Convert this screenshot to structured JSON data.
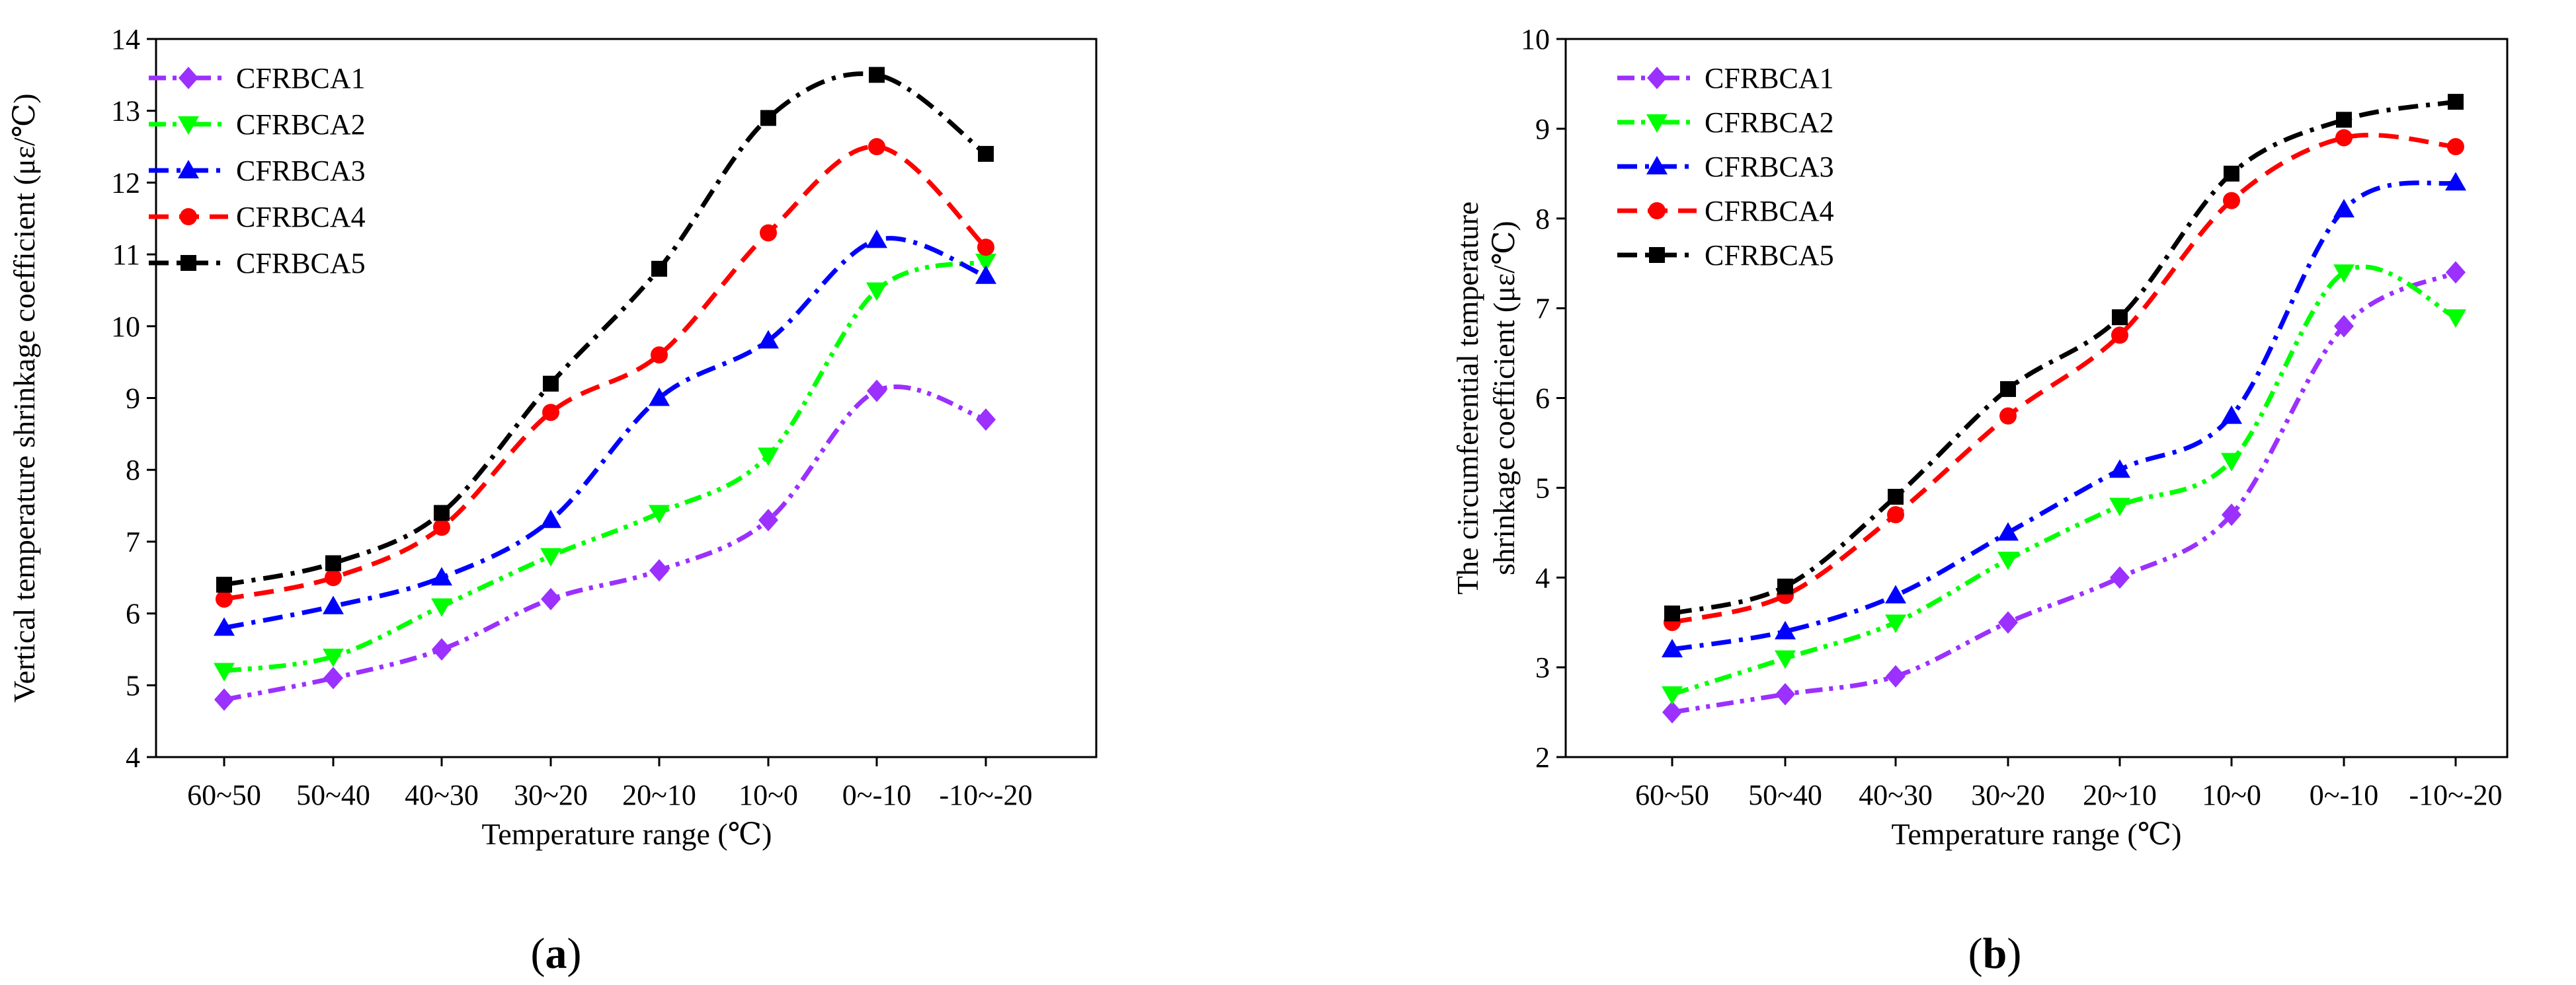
{
  "chart_data": [
    {
      "type": "line",
      "panel_label": "(a)",
      "panel_letter": "a",
      "title": "",
      "xlabel": "Temperature range (℃)",
      "ylabel": "Vertical temperature shrinkage coefficient (με/℃)",
      "categories": [
        "60~50",
        "50~40",
        "40~30",
        "30~20",
        "20~10",
        "10~0",
        "0~-10",
        "-10~-20"
      ],
      "ylim": [
        4,
        14
      ],
      "yticks": [
        4,
        5,
        6,
        7,
        8,
        9,
        10,
        11,
        12,
        13,
        14
      ],
      "legend_position": "top-left",
      "series": [
        {
          "name": "CFRBCA1",
          "color": "#9B30FF",
          "marker": "diamond",
          "dash": "dashdotdot",
          "values": [
            4.8,
            5.1,
            5.5,
            6.2,
            6.6,
            7.3,
            9.1,
            8.7
          ]
        },
        {
          "name": "CFRBCA2",
          "color": "#00FF00",
          "marker": "triangle-down",
          "dash": "dashdotdot",
          "values": [
            5.2,
            5.4,
            6.1,
            6.8,
            7.4,
            8.2,
            10.5,
            10.9
          ]
        },
        {
          "name": "CFRBCA3",
          "color": "#0000FF",
          "marker": "triangle-up",
          "dash": "dashdot",
          "values": [
            5.8,
            6.1,
            6.5,
            7.3,
            9.0,
            9.8,
            11.2,
            10.7
          ]
        },
        {
          "name": "CFRBCA4",
          "color": "#FF0000",
          "marker": "circle",
          "dash": "dash",
          "values": [
            6.2,
            6.5,
            7.2,
            8.8,
            9.6,
            11.3,
            12.5,
            11.1
          ]
        },
        {
          "name": "CFRBCA5",
          "color": "#000000",
          "marker": "square",
          "dash": "dashdot",
          "values": [
            6.4,
            6.7,
            7.4,
            9.2,
            10.8,
            12.9,
            13.5,
            12.4
          ]
        }
      ]
    },
    {
      "type": "line",
      "panel_label": "(b)",
      "panel_letter": "b",
      "title": "",
      "xlabel": "Temperature range (℃)",
      "ylabel_lines": [
        "The circumferential temperature",
        "shrinkage coefficient (με/℃)"
      ],
      "categories": [
        "60~50",
        "50~40",
        "40~30",
        "30~20",
        "20~10",
        "10~0",
        "0~-10",
        "-10~-20"
      ],
      "ylim": [
        2,
        10
      ],
      "yticks": [
        2,
        3,
        4,
        5,
        6,
        7,
        8,
        9,
        10
      ],
      "legend_position": "top-left",
      "series": [
        {
          "name": "CFRBCA1",
          "color": "#9B30FF",
          "marker": "diamond",
          "dash": "dashdotdot",
          "values": [
            2.5,
            2.7,
            2.9,
            3.5,
            4.0,
            4.7,
            6.8,
            7.4
          ]
        },
        {
          "name": "CFRBCA2",
          "color": "#00FF00",
          "marker": "triangle-down",
          "dash": "dashdotdot",
          "values": [
            2.7,
            3.1,
            3.5,
            4.2,
            4.8,
            5.3,
            7.4,
            6.9
          ]
        },
        {
          "name": "CFRBCA3",
          "color": "#0000FF",
          "marker": "triangle-up",
          "dash": "dashdot",
          "values": [
            3.2,
            3.4,
            3.8,
            4.5,
            5.2,
            5.8,
            8.1,
            8.4
          ]
        },
        {
          "name": "CFRBCA4",
          "color": "#FF0000",
          "marker": "circle",
          "dash": "dash",
          "values": [
            3.5,
            3.8,
            4.7,
            5.8,
            6.7,
            8.2,
            8.9,
            8.8
          ]
        },
        {
          "name": "CFRBCA5",
          "color": "#000000",
          "marker": "square",
          "dash": "dashdot",
          "values": [
            3.6,
            3.9,
            4.9,
            6.1,
            6.9,
            8.5,
            9.1,
            9.3
          ]
        }
      ]
    }
  ]
}
